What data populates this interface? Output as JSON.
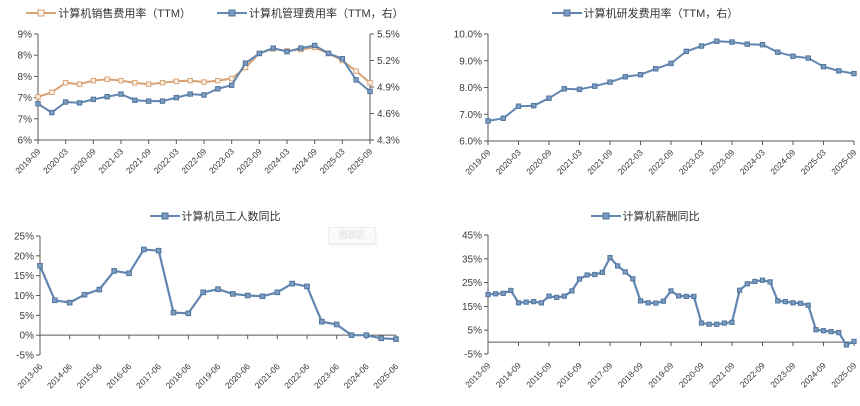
{
  "colors": {
    "axis_line": "#595959",
    "tick_text": "#3a3a3a",
    "legend_text": "#333333",
    "orange": "#D9A273",
    "blue": "#6286B2"
  },
  "watermark": {
    "text": "图表区"
  },
  "chart_data": [
    {
      "type": "line",
      "legend_position": "top",
      "y_axis_left": {
        "tick_labels": [
          "9%",
          "8%",
          "8%",
          "7%",
          "7%",
          "6%"
        ],
        "min": 6.0,
        "max": 9.0
      },
      "y_axis_right": {
        "tick_labels": [
          "5.5%",
          "5.2%",
          "4.9%",
          "4.6%",
          "4.3%"
        ],
        "min": 4.3,
        "max": 5.5
      },
      "tick_every": 2,
      "x_tick_labels": [
        "2019-09",
        "2020-03",
        "2020-09",
        "2021-03",
        "2021-09",
        "2022-03",
        "2022-09",
        "2023-03",
        "2023-09",
        "2024-03",
        "2024-09",
        "2025-03",
        "2025-09"
      ],
      "categories": [
        "2019-09",
        "2019-12",
        "2020-03",
        "2020-06",
        "2020-09",
        "2020-12",
        "2021-03",
        "2021-06",
        "2021-09",
        "2021-12",
        "2022-03",
        "2022-06",
        "2022-09",
        "2022-12",
        "2023-03",
        "2023-06",
        "2023-09",
        "2023-12",
        "2024-03",
        "2024-06",
        "2024-09",
        "2024-12",
        "2025-03",
        "2025-06",
        "2025-09"
      ],
      "series": [
        {
          "name": "计算机销售费用率（TTM）",
          "axis": "left",
          "color": "#D9A273",
          "marker_fill": "#FBF3E9",
          "marker_stroke": "#D9A273",
          "values": [
            7.22,
            7.35,
            7.62,
            7.58,
            7.68,
            7.72,
            7.68,
            7.62,
            7.58,
            7.62,
            7.66,
            7.68,
            7.64,
            7.68,
            7.74,
            8.05,
            8.45,
            8.58,
            8.52,
            8.56,
            8.62,
            8.45,
            8.25,
            7.95,
            7.62
          ]
        },
        {
          "name": "计算机管理费用率（TTM，右）",
          "axis": "right",
          "color": "#6286B2",
          "marker_fill": "#7D9CC0",
          "marker_stroke": "#4F759F",
          "values": [
            4.71,
            4.61,
            4.73,
            4.72,
            4.76,
            4.79,
            4.82,
            4.75,
            4.74,
            4.74,
            4.78,
            4.82,
            4.81,
            4.88,
            4.92,
            5.17,
            5.28,
            5.34,
            5.3,
            5.34,
            5.37,
            5.28,
            5.22,
            4.98,
            4.85
          ]
        }
      ]
    },
    {
      "type": "line",
      "legend_position": "top",
      "y_axis_left": {
        "tick_labels": [
          "10.0%",
          "9.0%",
          "8.0%",
          "7.0%",
          "6.0%"
        ],
        "min": 6.0,
        "max": 10.0
      },
      "tick_every": 2,
      "x_tick_labels": [
        "2019-09",
        "2020-03",
        "2020-09",
        "2021-03",
        "2021-09",
        "2022-03",
        "2022-09",
        "2023-03",
        "2023-09",
        "2024-03",
        "2024-09",
        "2025-03",
        "2025-09"
      ],
      "categories": [
        "2019-09",
        "2019-12",
        "2020-03",
        "2020-06",
        "2020-09",
        "2020-12",
        "2021-03",
        "2021-06",
        "2021-09",
        "2021-12",
        "2022-03",
        "2022-06",
        "2022-09",
        "2022-12",
        "2023-03",
        "2023-06",
        "2023-09",
        "2023-12",
        "2024-03",
        "2024-06",
        "2024-09",
        "2024-12",
        "2025-03",
        "2025-06",
        "2025-09"
      ],
      "series": [
        {
          "name": "计算机研发费用率（TTM，右）",
          "axis": "left",
          "color": "#6286B2",
          "marker_fill": "#7D9CC0",
          "marker_stroke": "#4F759F",
          "values": [
            6.75,
            6.85,
            7.3,
            7.32,
            7.6,
            7.95,
            7.93,
            8.05,
            8.2,
            8.4,
            8.48,
            8.7,
            8.9,
            9.35,
            9.55,
            9.73,
            9.7,
            9.62,
            9.6,
            9.32,
            9.17,
            9.1,
            8.78,
            8.62,
            8.52
          ]
        }
      ]
    },
    {
      "type": "line",
      "legend_position": "top",
      "baseline": 0,
      "y_axis_left": {
        "tick_labels": [
          "25%",
          "20%",
          "15%",
          "10%",
          "5%",
          "0%",
          "-5%"
        ],
        "min": -5,
        "max": 25
      },
      "tick_every": 2,
      "x_tick_labels": [
        "2013-06",
        "2014-06",
        "2015-06",
        "2016-06",
        "2017-06",
        "2018-06",
        "2019-06",
        "2020-06",
        "2021-06",
        "2022-06",
        "2023-06",
        "2024-06",
        "2025-06"
      ],
      "categories": [
        "2013-06",
        "2013-12",
        "2014-06",
        "2014-12",
        "2015-06",
        "2015-12",
        "2016-06",
        "2016-12",
        "2017-06",
        "2017-12",
        "2018-06",
        "2018-12",
        "2019-06",
        "2019-12",
        "2020-06",
        "2020-12",
        "2021-06",
        "2021-12",
        "2022-06",
        "2022-12",
        "2023-06",
        "2023-12",
        "2024-06",
        "2024-12",
        "2025-06"
      ],
      "series": [
        {
          "name": "计算机员工人数同比",
          "axis": "left",
          "color": "#6286B2",
          "marker_fill": "#7D9CC0",
          "marker_stroke": "#4F759F",
          "values": [
            17.5,
            8.8,
            8.2,
            10.2,
            11.5,
            16.2,
            15.6,
            21.6,
            21.3,
            5.7,
            5.5,
            10.8,
            11.6,
            10.4,
            10.0,
            9.8,
            10.8,
            13.0,
            12.3,
            3.4,
            2.7,
            0.0,
            0.0,
            -0.8,
            -1.0
          ]
        }
      ]
    },
    {
      "type": "line",
      "legend_position": "top",
      "baseline": 0,
      "y_axis_left": {
        "tick_labels": [
          "45%",
          "35%",
          "25%",
          "15%",
          "5%",
          "-5%"
        ],
        "min": -5,
        "max": 45
      },
      "tick_every": 4,
      "x_tick_labels": [
        "2013-09",
        "2014-09",
        "2015-09",
        "2016-09",
        "2017-09",
        "2018-09",
        "2019-09",
        "2020-09",
        "2021-09",
        "2022-09",
        "2023-09",
        "2024-09",
        "2025-09"
      ],
      "categories": [
        "2013-09",
        "2013-12",
        "2014-03",
        "2014-06",
        "2014-09",
        "2014-12",
        "2015-03",
        "2015-06",
        "2015-09",
        "2015-12",
        "2016-03",
        "2016-06",
        "2016-09",
        "2016-12",
        "2017-03",
        "2017-06",
        "2017-09",
        "2017-12",
        "2018-03",
        "2018-06",
        "2018-09",
        "2018-12",
        "2019-03",
        "2019-06",
        "2019-09",
        "2019-12",
        "2020-03",
        "2020-06",
        "2020-09",
        "2020-12",
        "2021-03",
        "2021-06",
        "2021-09",
        "2021-12",
        "2022-03",
        "2022-06",
        "2022-09",
        "2022-12",
        "2023-03",
        "2023-06",
        "2023-09",
        "2023-12",
        "2024-03",
        "2024-06",
        "2024-09",
        "2024-12",
        "2025-03",
        "2025-06",
        "2025-09"
      ],
      "series": [
        {
          "name": "计算机薪酬同比",
          "axis": "left",
          "color": "#6286B2",
          "marker_fill": "#7D9CC0",
          "marker_stroke": "#4F759F",
          "values": [
            20.0,
            20.3,
            20.5,
            21.7,
            16.5,
            16.8,
            17.0,
            16.5,
            19.3,
            18.8,
            19.3,
            21.5,
            26.5,
            28.2,
            28.4,
            29.3,
            35.5,
            32.0,
            29.5,
            26.6,
            17.3,
            16.5,
            16.4,
            17.2,
            21.5,
            19.4,
            19.2,
            19.2,
            8.0,
            7.5,
            7.5,
            8.0,
            8.3,
            21.8,
            24.5,
            25.5,
            26.0,
            25.3,
            17.3,
            17.0,
            16.5,
            16.3,
            15.5,
            5.2,
            4.8,
            4.4,
            4.0,
            -1.2,
            0.3
          ]
        }
      ]
    }
  ]
}
